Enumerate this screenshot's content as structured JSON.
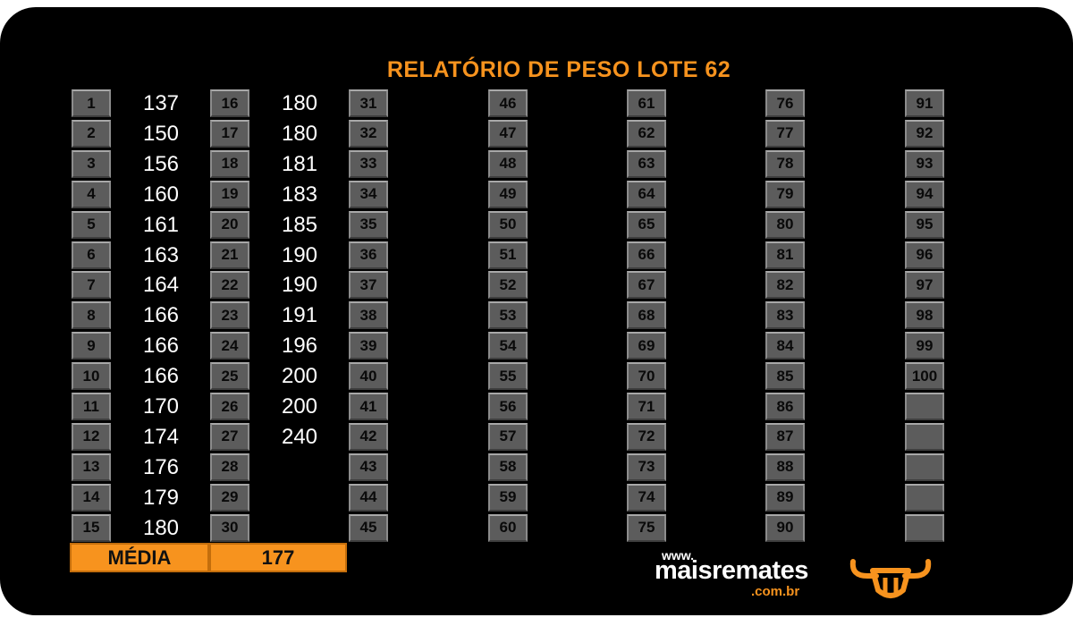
{
  "title": "RELATÓRIO DE PESO LOTE  62",
  "weights": [
    "137",
    "150",
    "156",
    "160",
    "161",
    "163",
    "164",
    "166",
    "166",
    "166",
    "170",
    "174",
    "176",
    "179",
    "180",
    "180",
    "180",
    "181",
    "183",
    "185",
    "190",
    "190",
    "191",
    "196",
    "200",
    "200",
    "240"
  ],
  "footer": {
    "media_label": "MÉDIA",
    "media_value": "177"
  },
  "logo": {
    "www": "www.",
    "name": "maisremates",
    "domain": ".com.br",
    "icon": "bull-head-icon"
  },
  "colors": {
    "accent": "#f7931e",
    "cell": "#5c5c5c",
    "background": "#000000",
    "text": "#ffffff"
  }
}
